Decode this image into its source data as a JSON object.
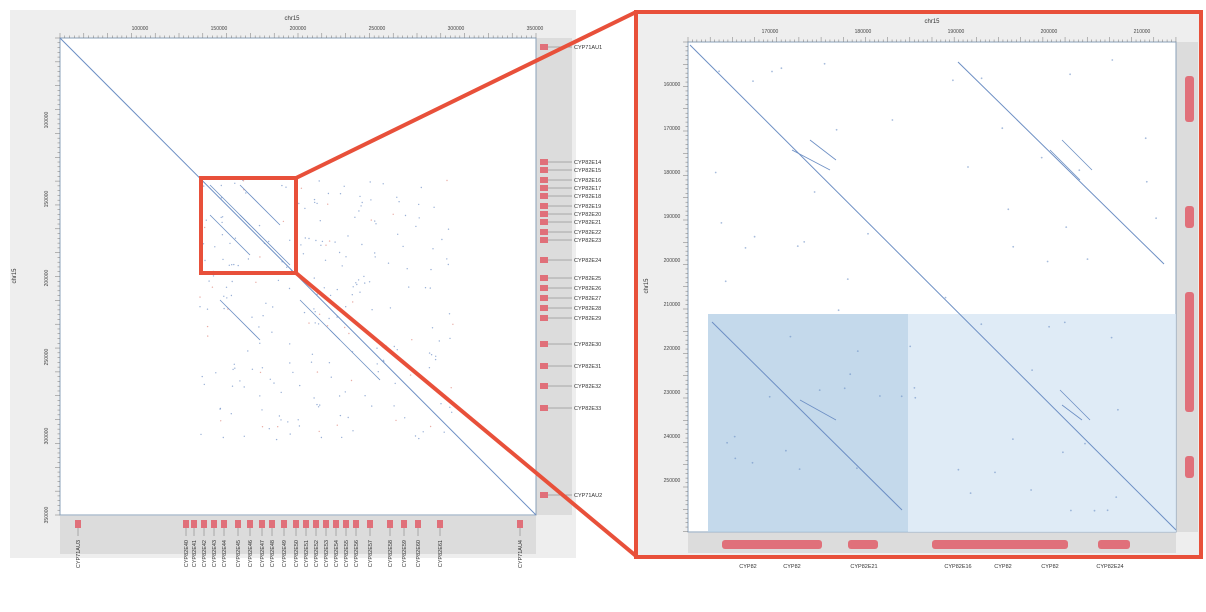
{
  "left_plot": {
    "x_title": "chr15",
    "y_title": "chr15",
    "x_ticks": [
      "100000",
      "150000",
      "200000",
      "250000",
      "300000",
      "350000"
    ],
    "y_ticks": [
      "100000",
      "150000",
      "200000",
      "250000",
      "300000",
      "350000"
    ],
    "right_genes": [
      "CYP71AU1",
      "CYP82E14",
      "CYP82E15",
      "CYP82E16",
      "CYP82E17",
      "CYP82E18",
      "CYP82E19",
      "CYP82E20",
      "CYP82E21",
      "CYP82E22",
      "CYP82E23",
      "CYP82E24",
      "CYP82E25",
      "CYP82E26",
      "CYP82E27",
      "CYP82E28",
      "CYP82E29",
      "CYP82E30",
      "CYP82E31",
      "CYP82E32",
      "CYP82E33",
      "CYP71AU2"
    ],
    "bottom_genes": [
      "CYP71AU3",
      "CYP82E40",
      "CYP82E41",
      "CYP82E42",
      "CYP82E43",
      "CYP82E44",
      "CYP82E45",
      "CYP82E46",
      "CYP82E47",
      "CYP82E48",
      "CYP82E49",
      "CYP82E50",
      "CYP82E51",
      "CYP82E52",
      "CYP82E53",
      "CYP82E54",
      "CYP82E55",
      "CYP82E56",
      "CYP82E57",
      "CYP82E58",
      "CYP82E59",
      "CYP82E60",
      "CYP82E61",
      "CYP71AU4"
    ]
  },
  "right_plot": {
    "x_title": "chr15",
    "y_title": "chr15",
    "x_ticks": [
      "170000",
      "180000",
      "190000",
      "200000",
      "210000"
    ],
    "y_ticks": [
      "160000",
      "170000",
      "180000",
      "190000",
      "200000",
      "210000",
      "220000",
      "230000",
      "240000",
      "250000"
    ],
    "bottom_genes": [
      "CYP82",
      "CYP82",
      "CYP82E21",
      "CYP82E16",
      "CYP82",
      "CYP82",
      "CYP82E24"
    ]
  },
  "colors": {
    "highlight": "#e8503a",
    "dotline": "#6d8fc4",
    "gene_box": "#e0707a",
    "band": "#c8d2dc",
    "shade_dark": "#b5cfe6",
    "shade_light": "#d9e7f4"
  }
}
